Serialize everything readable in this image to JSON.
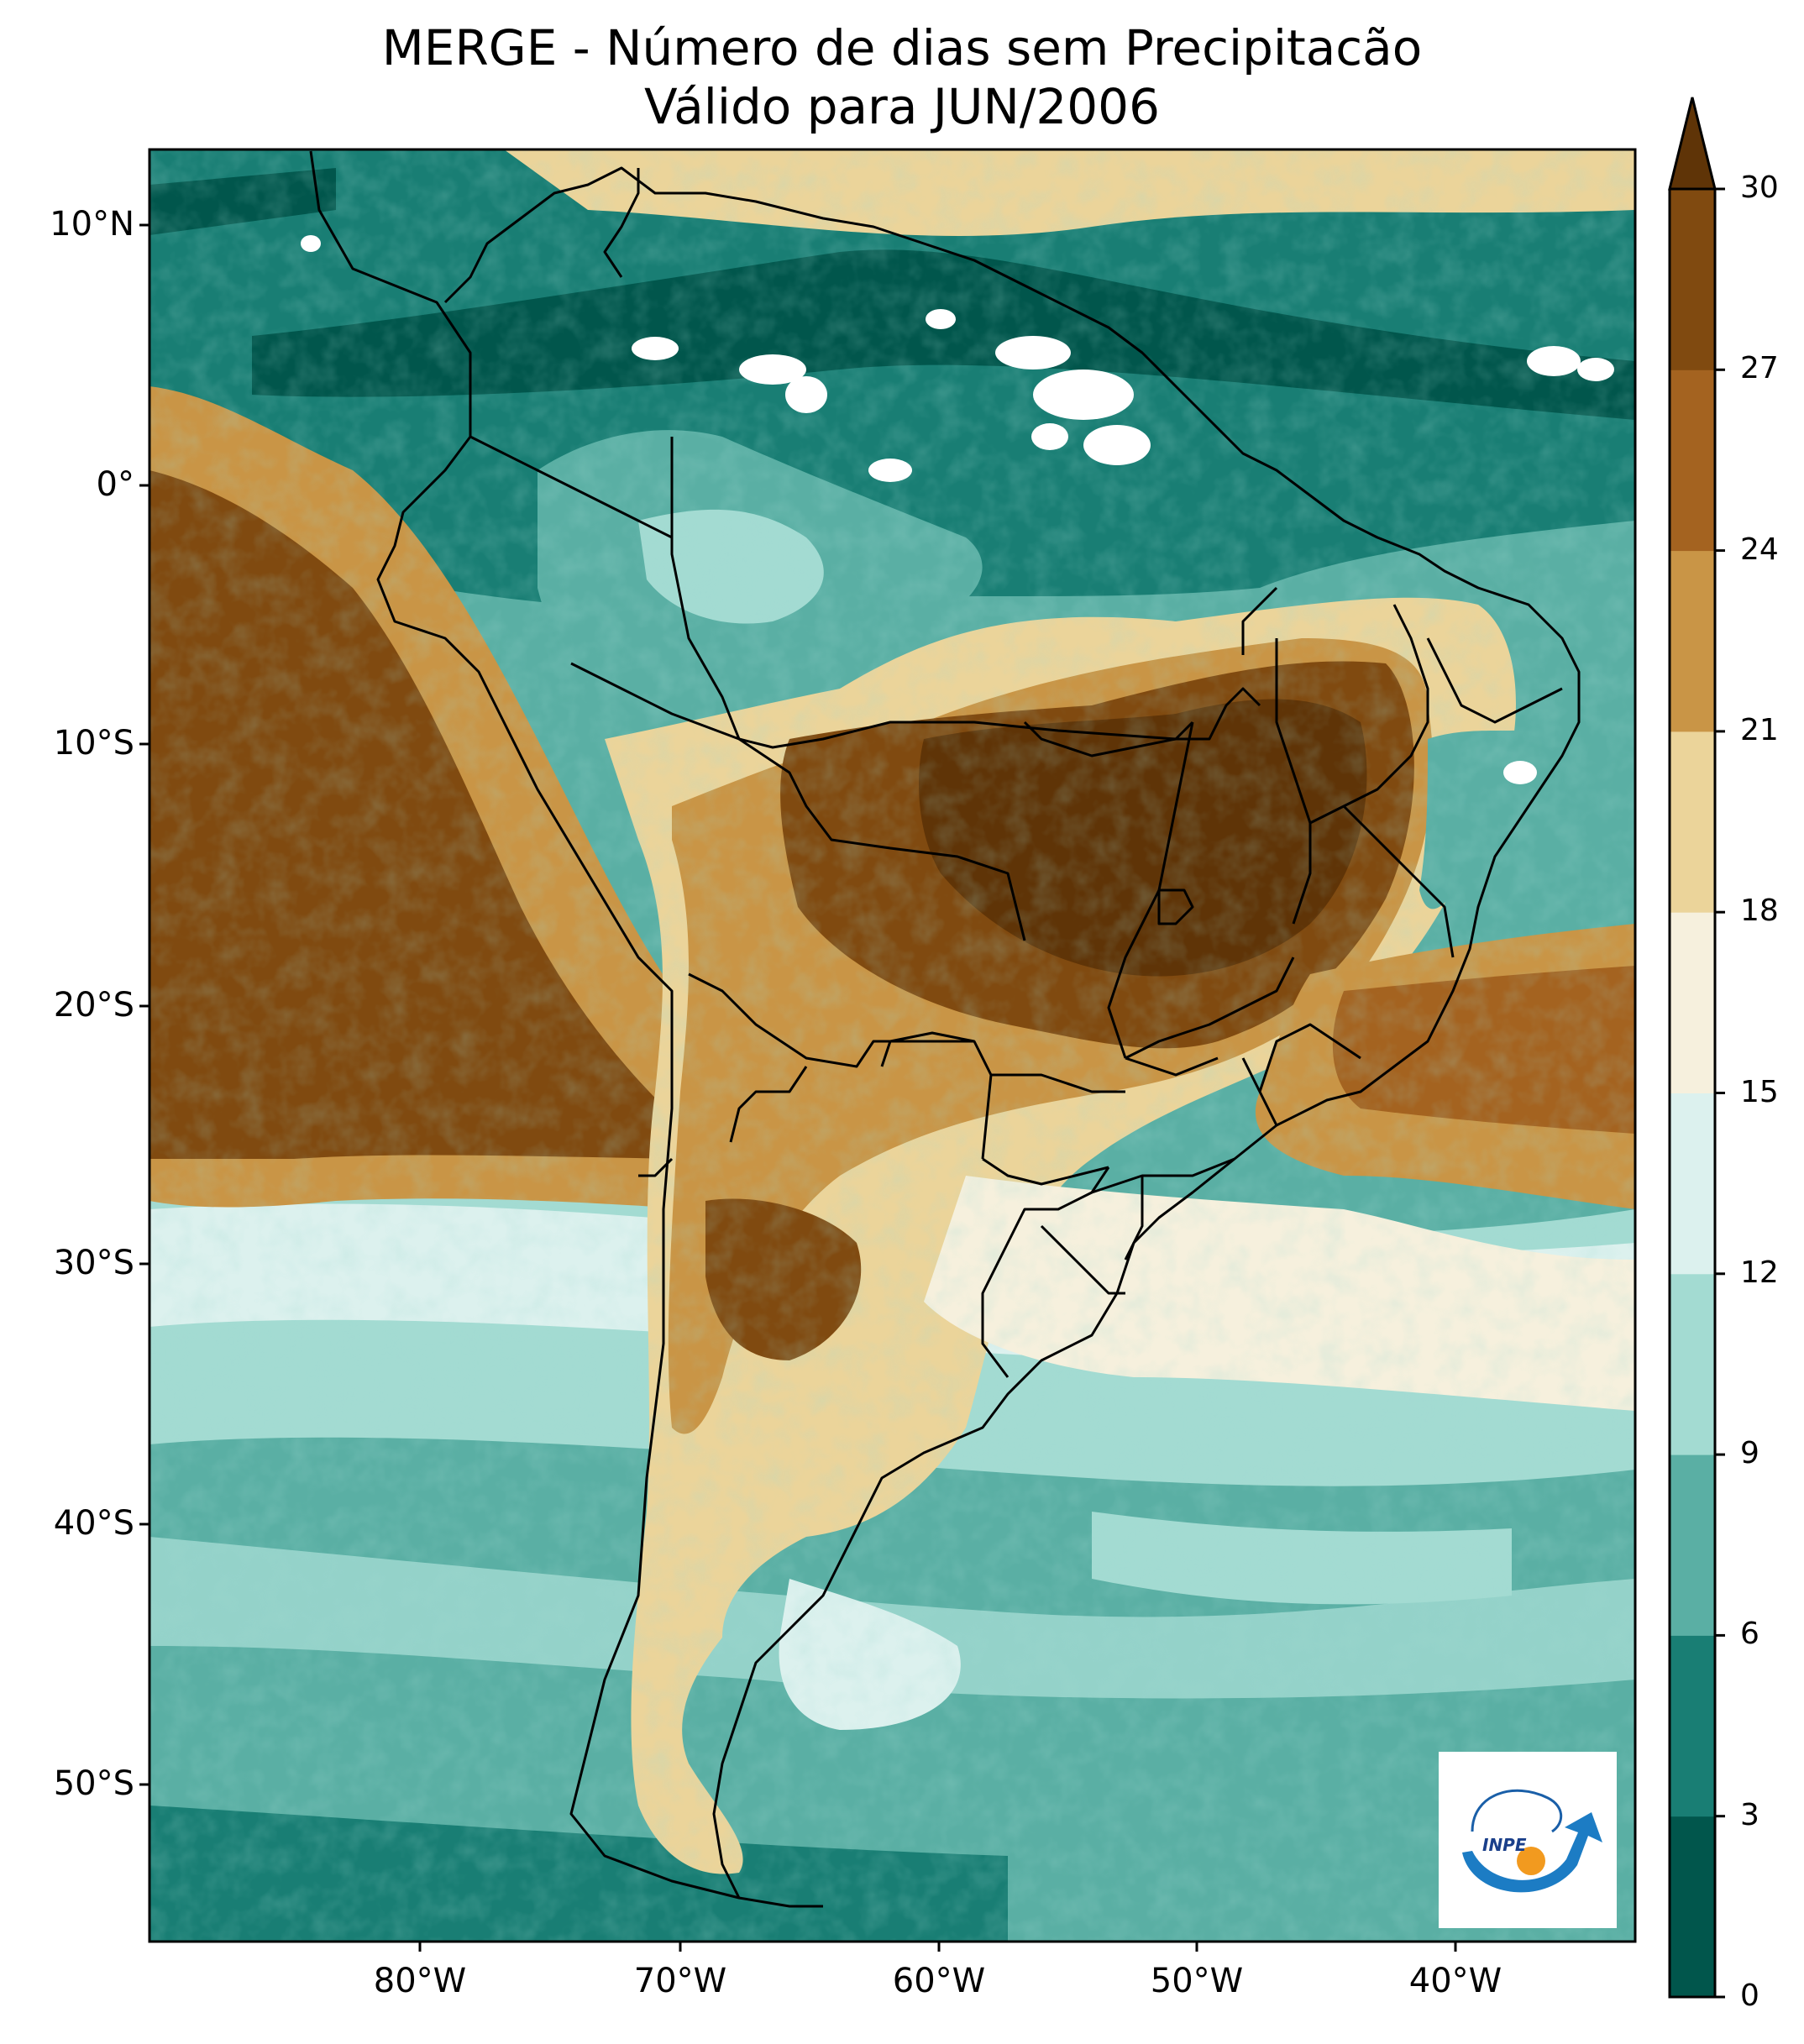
{
  "title": {
    "line1": "MERGE - Número de dias sem Precipitacão",
    "line2": "Válido para JUN/2006"
  },
  "lat_ticks": [
    "10°N",
    "0°",
    "10°S",
    "20°S",
    "30°S",
    "40°S",
    "50°S"
  ],
  "lon_ticks": [
    "80°W",
    "70°W",
    "60°W",
    "50°W",
    "40°W"
  ],
  "colorbar": {
    "ticks": [
      "0",
      "3",
      "6",
      "9",
      "12",
      "15",
      "18",
      "21",
      "24",
      "27",
      "30"
    ],
    "colors": [
      "#01564c",
      "#197e74",
      "#5aafa4",
      "#a3dbd2",
      "#dcf1ee",
      "#f6f0dd",
      "#ebd49a",
      "#c99546",
      "#a46320",
      "#804a10",
      "#5f3407"
    ],
    "extend": "max"
  },
  "logo": {
    "text": "INPE",
    "icon": "inpe-logo-icon"
  },
  "ocean_color": "#5aafa4"
}
